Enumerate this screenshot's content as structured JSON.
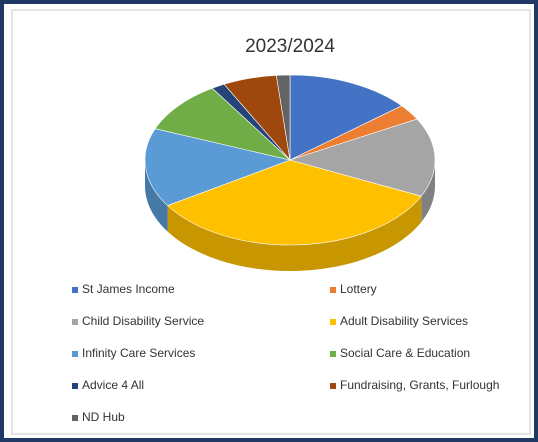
{
  "chart_data": {
    "type": "pie",
    "title": "2023/2024",
    "categories": [
      "St James Income",
      "Lottery",
      "Child Disability Service",
      "Adult Disability Services",
      "Infinity Care Services",
      "Social Care & Education",
      "Advice 4 All",
      "Fundraising, Grants, Furlough",
      "ND Hub"
    ],
    "values": [
      14,
      3,
      15,
      34,
      15,
      10,
      1.5,
      6,
      1.5
    ],
    "colors": [
      "#4472c4",
      "#ed7d31",
      "#a5a5a5",
      "#ffc000",
      "#5b9bd5",
      "#70ad47",
      "#264478",
      "#9e480e",
      "#636363"
    ],
    "legend": "bottom"
  }
}
